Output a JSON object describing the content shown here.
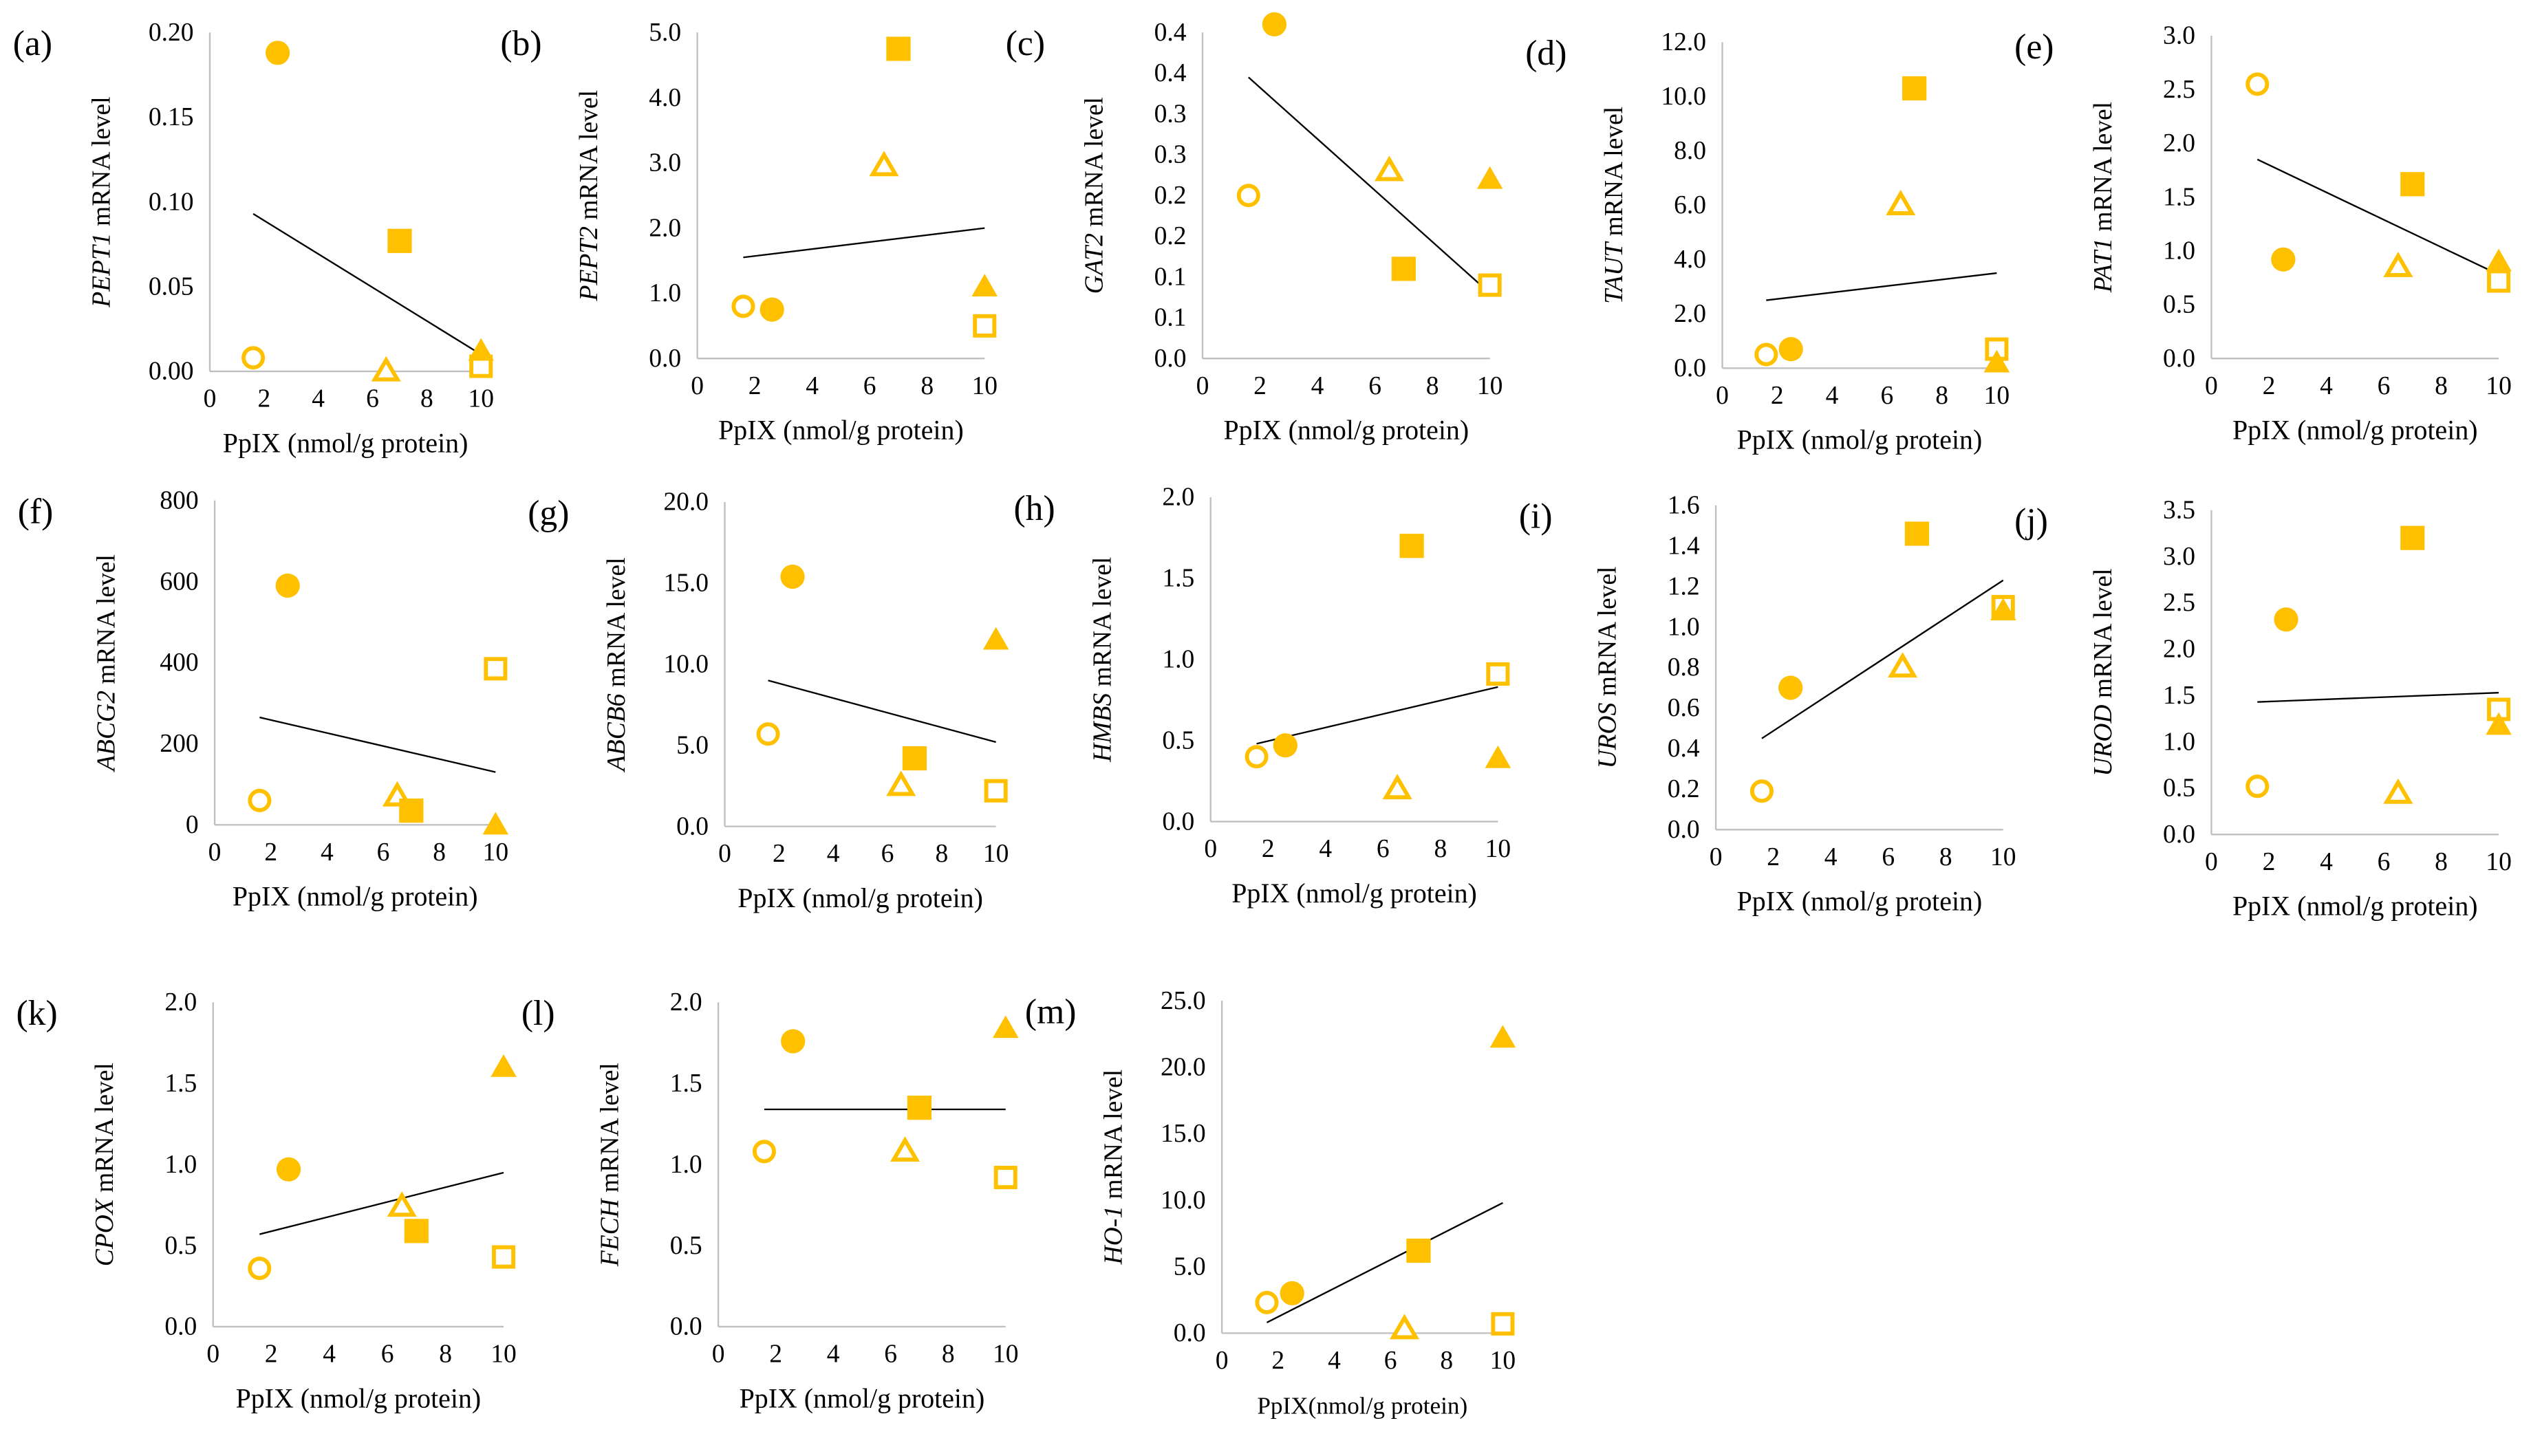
{
  "colors": {
    "marker": "#FFC000",
    "axis": "#bfbfbf",
    "trend": "#000000"
  },
  "chart_data": [
    {
      "type": "scatter",
      "label": "(a)",
      "gene": "PEPT1",
      "ylabel_suffix": " mRNA level",
      "xlabel": "PpIX (nmol/g protein)",
      "xlim": [
        0,
        10
      ],
      "xticks": [
        "0",
        "2",
        "4",
        "6",
        "8",
        "10"
      ],
      "ylim": [
        0,
        0.2
      ],
      "yticks": [
        "0.00",
        "0.05",
        "0.10",
        "0.15",
        "0.20"
      ],
      "points": [
        {
          "marker": "open-circle",
          "x": 1.6,
          "y": 0.008
        },
        {
          "marker": "filled-circle",
          "x": 2.5,
          "y": 0.188
        },
        {
          "marker": "open-triangle",
          "x": 6.5,
          "y": 0.0
        },
        {
          "marker": "filled-square",
          "x": 7,
          "y": 0.077
        },
        {
          "marker": "open-square",
          "x": 10,
          "y": 0.003
        },
        {
          "marker": "filled-triangle",
          "x": 10,
          "y": 0.012
        }
      ],
      "trendline": [
        [
          1.6,
          0.093
        ],
        [
          10,
          0.01
        ]
      ]
    },
    {
      "type": "scatter",
      "label": "(b)",
      "gene": "PEPT2",
      "ylabel_suffix": " mRNA level",
      "xlabel": "PpIX (nmol/g protein)",
      "xlim": [
        0,
        10
      ],
      "xticks": [
        "0",
        "2",
        "4",
        "6",
        "8",
        "10"
      ],
      "ylim": [
        0,
        5
      ],
      "yticks": [
        "0.0",
        "1.0",
        "2.0",
        "3.0",
        "4.0",
        "5.0"
      ],
      "points": [
        {
          "marker": "open-circle",
          "x": 1.6,
          "y": 0.8
        },
        {
          "marker": "filled-circle",
          "x": 2.6,
          "y": 0.75
        },
        {
          "marker": "open-triangle",
          "x": 6.5,
          "y": 2.95
        },
        {
          "marker": "filled-square",
          "x": 7,
          "y": 4.75
        },
        {
          "marker": "open-square",
          "x": 10,
          "y": 0.5
        },
        {
          "marker": "filled-triangle",
          "x": 10,
          "y": 1.1
        }
      ],
      "trendline": [
        [
          1.6,
          1.55
        ],
        [
          10,
          2.0
        ]
      ]
    },
    {
      "type": "scatter",
      "label": "(c)",
      "gene": "GAT2",
      "ylabel_suffix": " mRNA level",
      "xlabel": "PpIX (nmol/g protein)",
      "xlim": [
        0,
        10
      ],
      "xticks": [
        "0",
        "2",
        "4",
        "6",
        "8",
        "10"
      ],
      "ylim": [
        0,
        0.4
      ],
      "yticks": [
        "0.0",
        "0.1",
        "0.1",
        "0.2",
        "0.2",
        "0.3",
        "0.3",
        "0.4",
        "0.4"
      ],
      "points": [
        {
          "marker": "open-circle",
          "x": 1.6,
          "y": 0.2
        },
        {
          "marker": "filled-circle",
          "x": 2.5,
          "y": 0.41
        },
        {
          "marker": "open-triangle",
          "x": 6.5,
          "y": 0.23
        },
        {
          "marker": "filled-square",
          "x": 7,
          "y": 0.11
        },
        {
          "marker": "open-square",
          "x": 10,
          "y": 0.09
        },
        {
          "marker": "filled-triangle",
          "x": 10,
          "y": 0.22
        }
      ],
      "trendline": [
        [
          1.6,
          0.345
        ],
        [
          10,
          0.08
        ]
      ]
    },
    {
      "type": "scatter",
      "label": "(d)",
      "gene": "TAUT",
      "ylabel_suffix": " mRNA level",
      "xlabel": "PpIX (nmol/g protein)",
      "xlim": [
        0,
        10
      ],
      "xticks": [
        "0",
        "2",
        "4",
        "6",
        "8",
        "10"
      ],
      "ylim": [
        0,
        12
      ],
      "yticks": [
        "0.0",
        "2.0",
        "4.0",
        "6.0",
        "8.0",
        "10.0",
        "12.0"
      ],
      "points": [
        {
          "marker": "open-circle",
          "x": 1.6,
          "y": 0.5
        },
        {
          "marker": "filled-circle",
          "x": 2.5,
          "y": 0.7
        },
        {
          "marker": "open-triangle",
          "x": 6.5,
          "y": 6.0
        },
        {
          "marker": "filled-square",
          "x": 7,
          "y": 10.3
        },
        {
          "marker": "open-square",
          "x": 10,
          "y": 0.7
        },
        {
          "marker": "filled-triangle",
          "x": 10,
          "y": 0.2
        }
      ],
      "trendline": [
        [
          1.6,
          2.5
        ],
        [
          10,
          3.5
        ]
      ]
    },
    {
      "type": "scatter",
      "label": "(e)",
      "gene": "PAT1",
      "ylabel_suffix": " mRNA level",
      "xlabel": "PpIX (nmol/g protein)",
      "xlim": [
        0,
        10
      ],
      "xticks": [
        "0",
        "2",
        "4",
        "6",
        "8",
        "10"
      ],
      "ylim": [
        0,
        3
      ],
      "yticks": [
        "0.0",
        "0.5",
        "1.0",
        "1.5",
        "2.0",
        "2.5",
        "3.0"
      ],
      "points": [
        {
          "marker": "open-circle",
          "x": 1.6,
          "y": 2.55
        },
        {
          "marker": "filled-circle",
          "x": 2.5,
          "y": 0.92
        },
        {
          "marker": "open-triangle",
          "x": 6.5,
          "y": 0.85
        },
        {
          "marker": "filled-square",
          "x": 7,
          "y": 1.62
        },
        {
          "marker": "open-square",
          "x": 10,
          "y": 0.72
        },
        {
          "marker": "filled-triangle",
          "x": 10,
          "y": 0.9
        }
      ],
      "trendline": [
        [
          1.6,
          1.85
        ],
        [
          10,
          0.78
        ]
      ]
    },
    {
      "type": "scatter",
      "label": "(f)",
      "gene": "ABCG2",
      "ylabel_suffix": " mRNA level",
      "xlabel": "PpIX (nmol/g protein)",
      "xlim": [
        0,
        10
      ],
      "xticks": [
        "0",
        "2",
        "4",
        "6",
        "8",
        "10"
      ],
      "ylim": [
        0,
        800
      ],
      "yticks": [
        "0",
        "200",
        "400",
        "600",
        "800"
      ],
      "points": [
        {
          "marker": "open-circle",
          "x": 1.6,
          "y": 60
        },
        {
          "marker": "filled-circle",
          "x": 2.6,
          "y": 590
        },
        {
          "marker": "open-triangle",
          "x": 6.5,
          "y": 70
        },
        {
          "marker": "filled-square",
          "x": 7,
          "y": 35
        },
        {
          "marker": "open-square",
          "x": 10,
          "y": 385
        },
        {
          "marker": "filled-triangle",
          "x": 10,
          "y": 0
        }
      ],
      "trendline": [
        [
          1.6,
          265
        ],
        [
          10,
          130
        ]
      ]
    },
    {
      "type": "scatter",
      "label": "(g)",
      "gene": "ABCB6",
      "ylabel_suffix": " mRNA level",
      "xlabel": "PpIX (nmol/g protein)",
      "xlim": [
        0,
        10
      ],
      "xticks": [
        "0",
        "2",
        "4",
        "6",
        "8",
        "10"
      ],
      "ylim": [
        0,
        20
      ],
      "yticks": [
        "0.0",
        "5.0",
        "10.0",
        "15.0",
        "20.0"
      ],
      "points": [
        {
          "marker": "open-circle",
          "x": 1.6,
          "y": 5.7
        },
        {
          "marker": "filled-circle",
          "x": 2.5,
          "y": 15.4
        },
        {
          "marker": "open-triangle",
          "x": 6.5,
          "y": 2.5
        },
        {
          "marker": "filled-square",
          "x": 7,
          "y": 4.2
        },
        {
          "marker": "open-square",
          "x": 10,
          "y": 2.2
        },
        {
          "marker": "filled-triangle",
          "x": 10,
          "y": 11.5
        }
      ],
      "trendline": [
        [
          1.6,
          9.0
        ],
        [
          10,
          5.2
        ]
      ]
    },
    {
      "type": "scatter",
      "label": "(h)",
      "gene": "HMBS",
      "ylabel_suffix": " mRNA level",
      "xlabel": "PpIX (nmol/g protein)",
      "xlim": [
        0,
        10
      ],
      "xticks": [
        "0",
        "2",
        "4",
        "6",
        "8",
        "10"
      ],
      "ylim": [
        0,
        2
      ],
      "yticks": [
        "0.0",
        "0.5",
        "1.0",
        "1.5",
        "2.0"
      ],
      "points": [
        {
          "marker": "open-circle",
          "x": 1.6,
          "y": 0.4
        },
        {
          "marker": "filled-circle",
          "x": 2.6,
          "y": 0.47
        },
        {
          "marker": "open-triangle",
          "x": 6.5,
          "y": 0.2
        },
        {
          "marker": "filled-square",
          "x": 7,
          "y": 1.7
        },
        {
          "marker": "open-square",
          "x": 10,
          "y": 0.91
        },
        {
          "marker": "filled-triangle",
          "x": 10,
          "y": 0.39
        }
      ],
      "trendline": [
        [
          1.6,
          0.48
        ],
        [
          10,
          0.83
        ]
      ]
    },
    {
      "type": "scatter",
      "label": "(i)",
      "gene": "UROS",
      "ylabel_suffix": " mRNA level",
      "xlabel": "PpIX (nmol/g protein)",
      "xlim": [
        0,
        10
      ],
      "xticks": [
        "0",
        "2",
        "4",
        "6",
        "8",
        "10"
      ],
      "ylim": [
        0,
        1.6
      ],
      "yticks": [
        "0.0",
        "0.2",
        "0.4",
        "0.6",
        "0.8",
        "1.0",
        "1.2",
        "1.4",
        "1.6"
      ],
      "points": [
        {
          "marker": "open-circle",
          "x": 1.6,
          "y": 0.19
        },
        {
          "marker": "filled-circle",
          "x": 2.6,
          "y": 0.7
        },
        {
          "marker": "open-triangle",
          "x": 6.5,
          "y": 0.8
        },
        {
          "marker": "filled-square",
          "x": 7,
          "y": 1.46
        },
        {
          "marker": "open-square",
          "x": 10,
          "y": 1.1
        },
        {
          "marker": "filled-triangle",
          "x": 10,
          "y": 1.08
        }
      ],
      "trendline": [
        [
          1.6,
          0.45
        ],
        [
          10,
          1.23
        ]
      ]
    },
    {
      "type": "scatter",
      "label": "(j)",
      "gene": "UROD",
      "ylabel_suffix": " mRNA level",
      "xlabel": "PpIX (nmol/g protein)",
      "xlim": [
        0,
        10
      ],
      "xticks": [
        "0",
        "2",
        "4",
        "6",
        "8",
        "10"
      ],
      "ylim": [
        0,
        3.5
      ],
      "yticks": [
        "0.0",
        "0.5",
        "1.0",
        "1.5",
        "2.0",
        "2.5",
        "3.0",
        "3.5"
      ],
      "points": [
        {
          "marker": "open-circle",
          "x": 1.6,
          "y": 0.52
        },
        {
          "marker": "filled-circle",
          "x": 2.6,
          "y": 2.32
        },
        {
          "marker": "open-triangle",
          "x": 6.5,
          "y": 0.44
        },
        {
          "marker": "filled-square",
          "x": 7,
          "y": 3.2
        },
        {
          "marker": "open-square",
          "x": 10,
          "y": 1.35
        },
        {
          "marker": "filled-triangle",
          "x": 10,
          "y": 1.18
        }
      ],
      "trendline": [
        [
          1.6,
          1.43
        ],
        [
          10,
          1.53
        ]
      ]
    },
    {
      "type": "scatter",
      "label": "(k)",
      "gene": "CPOX",
      "ylabel_suffix": " mRNA level",
      "xlabel": "PpIX (nmol/g protein)",
      "xlim": [
        0,
        10
      ],
      "xticks": [
        "0",
        "2",
        "4",
        "6",
        "8",
        "10"
      ],
      "ylim": [
        0,
        2
      ],
      "yticks": [
        "0.0",
        "0.5",
        "1.0",
        "1.5",
        "2.0"
      ],
      "points": [
        {
          "marker": "open-circle",
          "x": 1.6,
          "y": 0.36
        },
        {
          "marker": "filled-circle",
          "x": 2.6,
          "y": 0.97
        },
        {
          "marker": "open-triangle",
          "x": 6.5,
          "y": 0.74
        },
        {
          "marker": "filled-square",
          "x": 7,
          "y": 0.59
        },
        {
          "marker": "open-square",
          "x": 10,
          "y": 0.43
        },
        {
          "marker": "filled-triangle",
          "x": 10,
          "y": 1.6
        }
      ],
      "trendline": [
        [
          1.6,
          0.57
        ],
        [
          10,
          0.95
        ]
      ]
    },
    {
      "type": "scatter",
      "label": "(l)",
      "gene": "FECH",
      "ylabel_suffix": " mRNA level",
      "xlabel": "PpIX (nmol/g protein)",
      "xlim": [
        0,
        10
      ],
      "xticks": [
        "0",
        "2",
        "4",
        "6",
        "8",
        "10"
      ],
      "ylim": [
        0,
        2
      ],
      "yticks": [
        "0.0",
        "0.5",
        "1.0",
        "1.5",
        "2.0"
      ],
      "points": [
        {
          "marker": "open-circle",
          "x": 1.6,
          "y": 1.08
        },
        {
          "marker": "filled-circle",
          "x": 2.6,
          "y": 1.76
        },
        {
          "marker": "open-triangle",
          "x": 6.5,
          "y": 1.08
        },
        {
          "marker": "filled-square",
          "x": 7,
          "y": 1.35
        },
        {
          "marker": "open-square",
          "x": 10,
          "y": 0.92
        },
        {
          "marker": "filled-triangle",
          "x": 10,
          "y": 1.84
        }
      ],
      "trendline": [
        [
          1.6,
          1.34
        ],
        [
          10,
          1.34
        ]
      ]
    },
    {
      "type": "scatter",
      "label": "(m)",
      "gene": "HO-1",
      "ylabel_suffix": " mRNA level",
      "xlabel": "PpIX(nmol/g protein)",
      "xlim": [
        0,
        10
      ],
      "xticks": [
        "0",
        "2",
        "4",
        "6",
        "8",
        "10"
      ],
      "ylim": [
        0,
        25
      ],
      "yticks": [
        "0.0",
        "5.0",
        "10.0",
        "15.0",
        "20.0",
        "25.0"
      ],
      "points": [
        {
          "marker": "open-circle",
          "x": 1.6,
          "y": 2.3
        },
        {
          "marker": "filled-circle",
          "x": 2.5,
          "y": 3.0
        },
        {
          "marker": "open-triangle",
          "x": 6.5,
          "y": 0.3
        },
        {
          "marker": "filled-square",
          "x": 7,
          "y": 6.2
        },
        {
          "marker": "open-square",
          "x": 10,
          "y": 0.7
        },
        {
          "marker": "filled-triangle",
          "x": 10,
          "y": 22.2
        }
      ],
      "trendline": [
        [
          1.6,
          0.8
        ],
        [
          10,
          9.8
        ]
      ]
    }
  ]
}
